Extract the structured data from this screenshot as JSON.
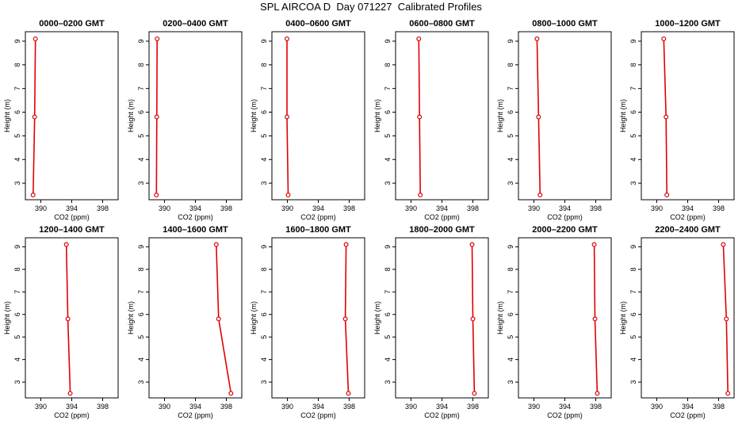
{
  "page": {
    "title": "SPL AIRCOA D  Day 071227  Calibrated Profiles"
  },
  "style": {
    "line_color": "#e00000",
    "axis_color": "#000000"
  },
  "chart_data": [
    {
      "type": "line",
      "title": "0000–0200 GMT",
      "xlabel": "CO2 (ppm)",
      "ylabel": "Height (m)",
      "xlim": [
        388.0,
        400.0
      ],
      "ylim": [
        2.3,
        9.4
      ],
      "xticks": [
        390,
        394,
        398
      ],
      "xtick_labels": [
        "390",
        "394",
        "398"
      ],
      "yticks": [
        3,
        4,
        5,
        6,
        7,
        8,
        9
      ],
      "ytick_labels": [
        "3",
        "4",
        "5",
        "6",
        "7",
        "8",
        "9"
      ],
      "grid": false,
      "series": [
        {
          "x": [
            389.0,
            389.2,
            389.3
          ],
          "y": [
            2.5,
            5.8,
            9.1
          ]
        }
      ]
    },
    {
      "type": "line",
      "title": "0200–0400 GMT",
      "xlabel": "CO2 (ppm)",
      "ylabel": "Height (m)",
      "xlim": [
        388.0,
        400.0
      ],
      "ylim": [
        2.3,
        9.4
      ],
      "xticks": [
        390,
        394,
        398
      ],
      "xtick_labels": [
        "390",
        "394",
        "398"
      ],
      "yticks": [
        3,
        4,
        5,
        6,
        7,
        8,
        9
      ],
      "ytick_labels": [
        "3",
        "4",
        "5",
        "6",
        "7",
        "8",
        "9"
      ],
      "grid": false,
      "series": [
        {
          "x": [
            388.95,
            389.0,
            389.05
          ],
          "y": [
            2.5,
            5.8,
            9.1
          ]
        }
      ]
    },
    {
      "type": "line",
      "title": "0400–0600 GMT",
      "xlabel": "CO2 (ppm)",
      "ylabel": "Height (m)",
      "xlim": [
        388.0,
        400.0
      ],
      "ylim": [
        2.3,
        9.4
      ],
      "xticks": [
        390,
        394,
        398
      ],
      "xtick_labels": [
        "390",
        "394",
        "398"
      ],
      "yticks": [
        3,
        4,
        5,
        6,
        7,
        8,
        9
      ],
      "ytick_labels": [
        "3",
        "4",
        "5",
        "6",
        "7",
        "8",
        "9"
      ],
      "grid": false,
      "series": [
        {
          "x": [
            390.1,
            389.95,
            389.95
          ],
          "y": [
            2.5,
            5.8,
            9.1
          ]
        }
      ]
    },
    {
      "type": "line",
      "title": "0600–0800 GMT",
      "xlabel": "CO2 (ppm)",
      "ylabel": "Height (m)",
      "xlim": [
        388.0,
        400.0
      ],
      "ylim": [
        2.3,
        9.4
      ],
      "xticks": [
        390,
        394,
        398
      ],
      "xtick_labels": [
        "390",
        "394",
        "398"
      ],
      "yticks": [
        3,
        4,
        5,
        6,
        7,
        8,
        9
      ],
      "ytick_labels": [
        "3",
        "4",
        "5",
        "6",
        "7",
        "8",
        "9"
      ],
      "grid": false,
      "series": [
        {
          "x": [
            391.2,
            391.1,
            391.0
          ],
          "y": [
            2.5,
            5.8,
            9.1
          ]
        }
      ]
    },
    {
      "type": "line",
      "title": "0800–1000 GMT",
      "xlabel": "CO2 (ppm)",
      "ylabel": "Height (m)",
      "xlim": [
        388.0,
        400.0
      ],
      "ylim": [
        2.3,
        9.4
      ],
      "xticks": [
        390,
        394,
        398
      ],
      "xtick_labels": [
        "390",
        "394",
        "398"
      ],
      "yticks": [
        3,
        4,
        5,
        6,
        7,
        8,
        9
      ],
      "ytick_labels": [
        "3",
        "4",
        "5",
        "6",
        "7",
        "8",
        "9"
      ],
      "grid": false,
      "series": [
        {
          "x": [
            390.8,
            390.6,
            390.4
          ],
          "y": [
            2.5,
            5.8,
            9.1
          ]
        }
      ]
    },
    {
      "type": "line",
      "title": "1000–1200 GMT",
      "xlabel": "CO2 (ppm)",
      "ylabel": "Height (m)",
      "xlim": [
        388.0,
        400.0
      ],
      "ylim": [
        2.3,
        9.4
      ],
      "xticks": [
        390,
        394,
        398
      ],
      "xtick_labels": [
        "390",
        "394",
        "398"
      ],
      "yticks": [
        3,
        4,
        5,
        6,
        7,
        8,
        9
      ],
      "ytick_labels": [
        "3",
        "4",
        "5",
        "6",
        "7",
        "8",
        "9"
      ],
      "grid": false,
      "series": [
        {
          "x": [
            391.3,
            391.2,
            390.9
          ],
          "y": [
            2.5,
            5.8,
            9.1
          ]
        }
      ]
    },
    {
      "type": "line",
      "title": "1200–1400 GMT",
      "xlabel": "CO2 (ppm)",
      "ylabel": "Height (m)",
      "xlim": [
        388.0,
        400.0
      ],
      "ylim": [
        2.3,
        9.4
      ],
      "xticks": [
        390,
        394,
        398
      ],
      "xtick_labels": [
        "390",
        "394",
        "398"
      ],
      "yticks": [
        3,
        4,
        5,
        6,
        7,
        8,
        9
      ],
      "ytick_labels": [
        "3",
        "4",
        "5",
        "6",
        "7",
        "8",
        "9"
      ],
      "grid": false,
      "series": [
        {
          "x": [
            393.8,
            393.5,
            393.3
          ],
          "y": [
            2.5,
            5.8,
            9.1
          ]
        }
      ]
    },
    {
      "type": "line",
      "title": "1400–1600 GMT",
      "xlabel": "CO2 (ppm)",
      "ylabel": "Height (m)",
      "xlim": [
        388.0,
        400.0
      ],
      "ylim": [
        2.3,
        9.4
      ],
      "xticks": [
        390,
        394,
        398
      ],
      "xtick_labels": [
        "390",
        "394",
        "398"
      ],
      "yticks": [
        3,
        4,
        5,
        6,
        7,
        8,
        9
      ],
      "ytick_labels": [
        "3",
        "4",
        "5",
        "6",
        "7",
        "8",
        "9"
      ],
      "grid": false,
      "series": [
        {
          "x": [
            398.6,
            397.0,
            396.7
          ],
          "y": [
            2.5,
            5.8,
            9.1
          ]
        }
      ]
    },
    {
      "type": "line",
      "title": "1600–1800 GMT",
      "xlabel": "CO2 (ppm)",
      "ylabel": "Height (m)",
      "xlim": [
        388.0,
        400.0
      ],
      "ylim": [
        2.3,
        9.4
      ],
      "xticks": [
        390,
        394,
        398
      ],
      "xtick_labels": [
        "390",
        "394",
        "398"
      ],
      "yticks": [
        3,
        4,
        5,
        6,
        7,
        8,
        9
      ],
      "ytick_labels": [
        "3",
        "4",
        "5",
        "6",
        "7",
        "8",
        "9"
      ],
      "grid": false,
      "series": [
        {
          "x": [
            397.9,
            397.5,
            397.6
          ],
          "y": [
            2.5,
            5.8,
            9.1
          ]
        }
      ]
    },
    {
      "type": "line",
      "title": "1800–2000 GMT",
      "xlabel": "CO2 (ppm)",
      "ylabel": "Height (m)",
      "xlim": [
        388.0,
        400.0
      ],
      "ylim": [
        2.3,
        9.4
      ],
      "xticks": [
        390,
        394,
        398
      ],
      "xtick_labels": [
        "390",
        "394",
        "398"
      ],
      "yticks": [
        3,
        4,
        5,
        6,
        7,
        8,
        9
      ],
      "ytick_labels": [
        "3",
        "4",
        "5",
        "6",
        "7",
        "8",
        "9"
      ],
      "grid": false,
      "series": [
        {
          "x": [
            398.2,
            398.0,
            397.9
          ],
          "y": [
            2.5,
            5.8,
            9.1
          ]
        }
      ]
    },
    {
      "type": "line",
      "title": "2000–2200 GMT",
      "xlabel": "CO2 (ppm)",
      "ylabel": "Height (m)",
      "xlim": [
        388.0,
        400.0
      ],
      "ylim": [
        2.3,
        9.4
      ],
      "xticks": [
        390,
        394,
        398
      ],
      "xtick_labels": [
        "390",
        "394",
        "398"
      ],
      "yticks": [
        3,
        4,
        5,
        6,
        7,
        8,
        9
      ],
      "ytick_labels": [
        "3",
        "4",
        "5",
        "6",
        "7",
        "8",
        "9"
      ],
      "grid": false,
      "series": [
        {
          "x": [
            398.2,
            397.9,
            397.8
          ],
          "y": [
            2.5,
            5.8,
            9.1
          ]
        }
      ]
    },
    {
      "type": "line",
      "title": "2200–2400 GMT",
      "xlabel": "CO2 (ppm)",
      "ylabel": "Height (m)",
      "xlim": [
        388.0,
        400.0
      ],
      "ylim": [
        2.3,
        9.4
      ],
      "xticks": [
        390,
        394,
        398
      ],
      "xtick_labels": [
        "390",
        "394",
        "398"
      ],
      "yticks": [
        3,
        4,
        5,
        6,
        7,
        8,
        9
      ],
      "ytick_labels": [
        "3",
        "4",
        "5",
        "6",
        "7",
        "8",
        "9"
      ],
      "grid": false,
      "series": [
        {
          "x": [
            399.2,
            399.0,
            398.6
          ],
          "y": [
            2.5,
            5.8,
            9.1
          ]
        }
      ]
    }
  ]
}
